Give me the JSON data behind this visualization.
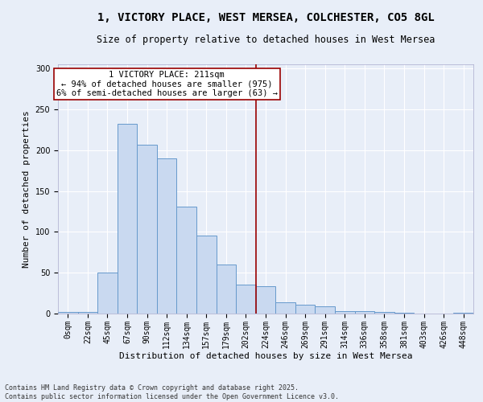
{
  "title": "1, VICTORY PLACE, WEST MERSEA, COLCHESTER, CO5 8GL",
  "subtitle": "Size of property relative to detached houses in West Mersea",
  "xlabel": "Distribution of detached houses by size in West Mersea",
  "ylabel": "Number of detached properties",
  "categories": [
    "0sqm",
    "22sqm",
    "45sqm",
    "67sqm",
    "90sqm",
    "112sqm",
    "134sqm",
    "157sqm",
    "179sqm",
    "202sqm",
    "224sqm",
    "246sqm",
    "269sqm",
    "291sqm",
    "314sqm",
    "336sqm",
    "358sqm",
    "381sqm",
    "403sqm",
    "426sqm",
    "448sqm"
  ],
  "bar_heights": [
    2,
    2,
    50,
    232,
    207,
    190,
    131,
    95,
    60,
    35,
    33,
    14,
    11,
    9,
    3,
    3,
    2,
    1,
    0,
    0,
    1
  ],
  "bar_color": "#c9d9f0",
  "bar_edge_color": "#6699cc",
  "vline_x": 9.5,
  "vline_color": "#990000",
  "annotation_text": "1 VICTORY PLACE: 211sqm\n← 94% of detached houses are smaller (975)\n6% of semi-detached houses are larger (63) →",
  "annotation_box_color": "#ffffff",
  "annotation_box_edge_color": "#990000",
  "ylim": [
    0,
    305
  ],
  "yticks": [
    0,
    50,
    100,
    150,
    200,
    250,
    300
  ],
  "footer": "Contains HM Land Registry data © Crown copyright and database right 2025.\nContains public sector information licensed under the Open Government Licence v3.0.",
  "bg_color": "#e8eef8",
  "plot_bg_color": "#e8eef8",
  "title_fontsize": 10,
  "subtitle_fontsize": 8.5,
  "label_fontsize": 8,
  "tick_fontsize": 7,
  "footer_fontsize": 6,
  "ann_fontsize": 7.5
}
